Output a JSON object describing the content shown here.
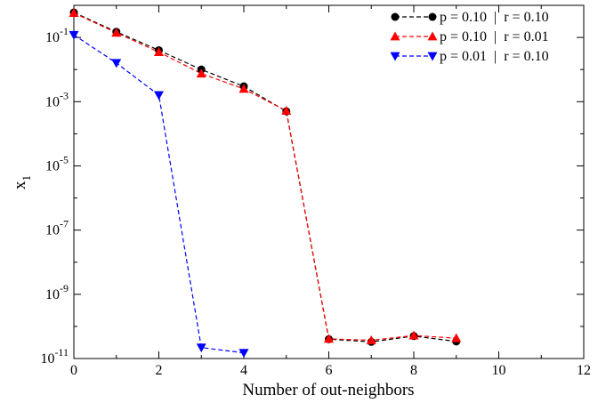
{
  "chart_data": {
    "type": "line",
    "xlabel": "Number of out-neighbors",
    "ylabel_main": "x",
    "ylabel_sub": "1",
    "xlim": [
      0,
      12
    ],
    "ylim_log10": [
      -11,
      0
    ],
    "yscale": "log",
    "grid": false,
    "legend_position": "top-right",
    "x_ticks": [
      {
        "value": 0,
        "label": "0"
      },
      {
        "value": 2,
        "label": "2"
      },
      {
        "value": 4,
        "label": "4"
      },
      {
        "value": 6,
        "label": "6"
      },
      {
        "value": 8,
        "label": "8"
      },
      {
        "value": 10,
        "label": "10"
      },
      {
        "value": 12,
        "label": "12"
      }
    ],
    "y_ticks": [
      {
        "exp": -1,
        "base": "10",
        "sup": "-1"
      },
      {
        "exp": -3,
        "base": "10",
        "sup": "-3"
      },
      {
        "exp": -5,
        "base": "10",
        "sup": "-5"
      },
      {
        "exp": -7,
        "base": "10",
        "sup": "-7"
      },
      {
        "exp": -9,
        "base": "10",
        "sup": "-9"
      },
      {
        "exp": -11,
        "base": "10",
        "sup": "-11"
      }
    ],
    "series": [
      {
        "name": "p = 0.10  |  r = 0.10",
        "color": "#000000",
        "marker": "circle",
        "x": [
          0,
          1,
          2,
          3,
          4,
          5,
          6,
          7,
          8,
          9
        ],
        "y": [
          0.6,
          0.15,
          0.04,
          0.01,
          0.003,
          0.0005,
          4e-11,
          3.3e-11,
          5e-11,
          3.4e-11
        ]
      },
      {
        "name": "p = 0.10  |  r = 0.01",
        "color": "#ff0000",
        "marker": "triangle-up",
        "x": [
          0,
          1,
          2,
          3,
          4,
          5,
          6,
          7,
          8,
          9
        ],
        "y": [
          0.58,
          0.14,
          0.035,
          0.0075,
          0.0025,
          0.00052,
          4.1e-11,
          3.7e-11,
          5.2e-11,
          4.3e-11
        ]
      },
      {
        "name": "p = 0.01  |  r = 0.10",
        "color": "#0000ff",
        "marker": "triangle-down",
        "x": [
          0,
          1,
          2,
          3,
          4
        ],
        "y": [
          0.12,
          0.016,
          0.0016,
          2.2e-11,
          1.5e-11
        ]
      }
    ]
  }
}
